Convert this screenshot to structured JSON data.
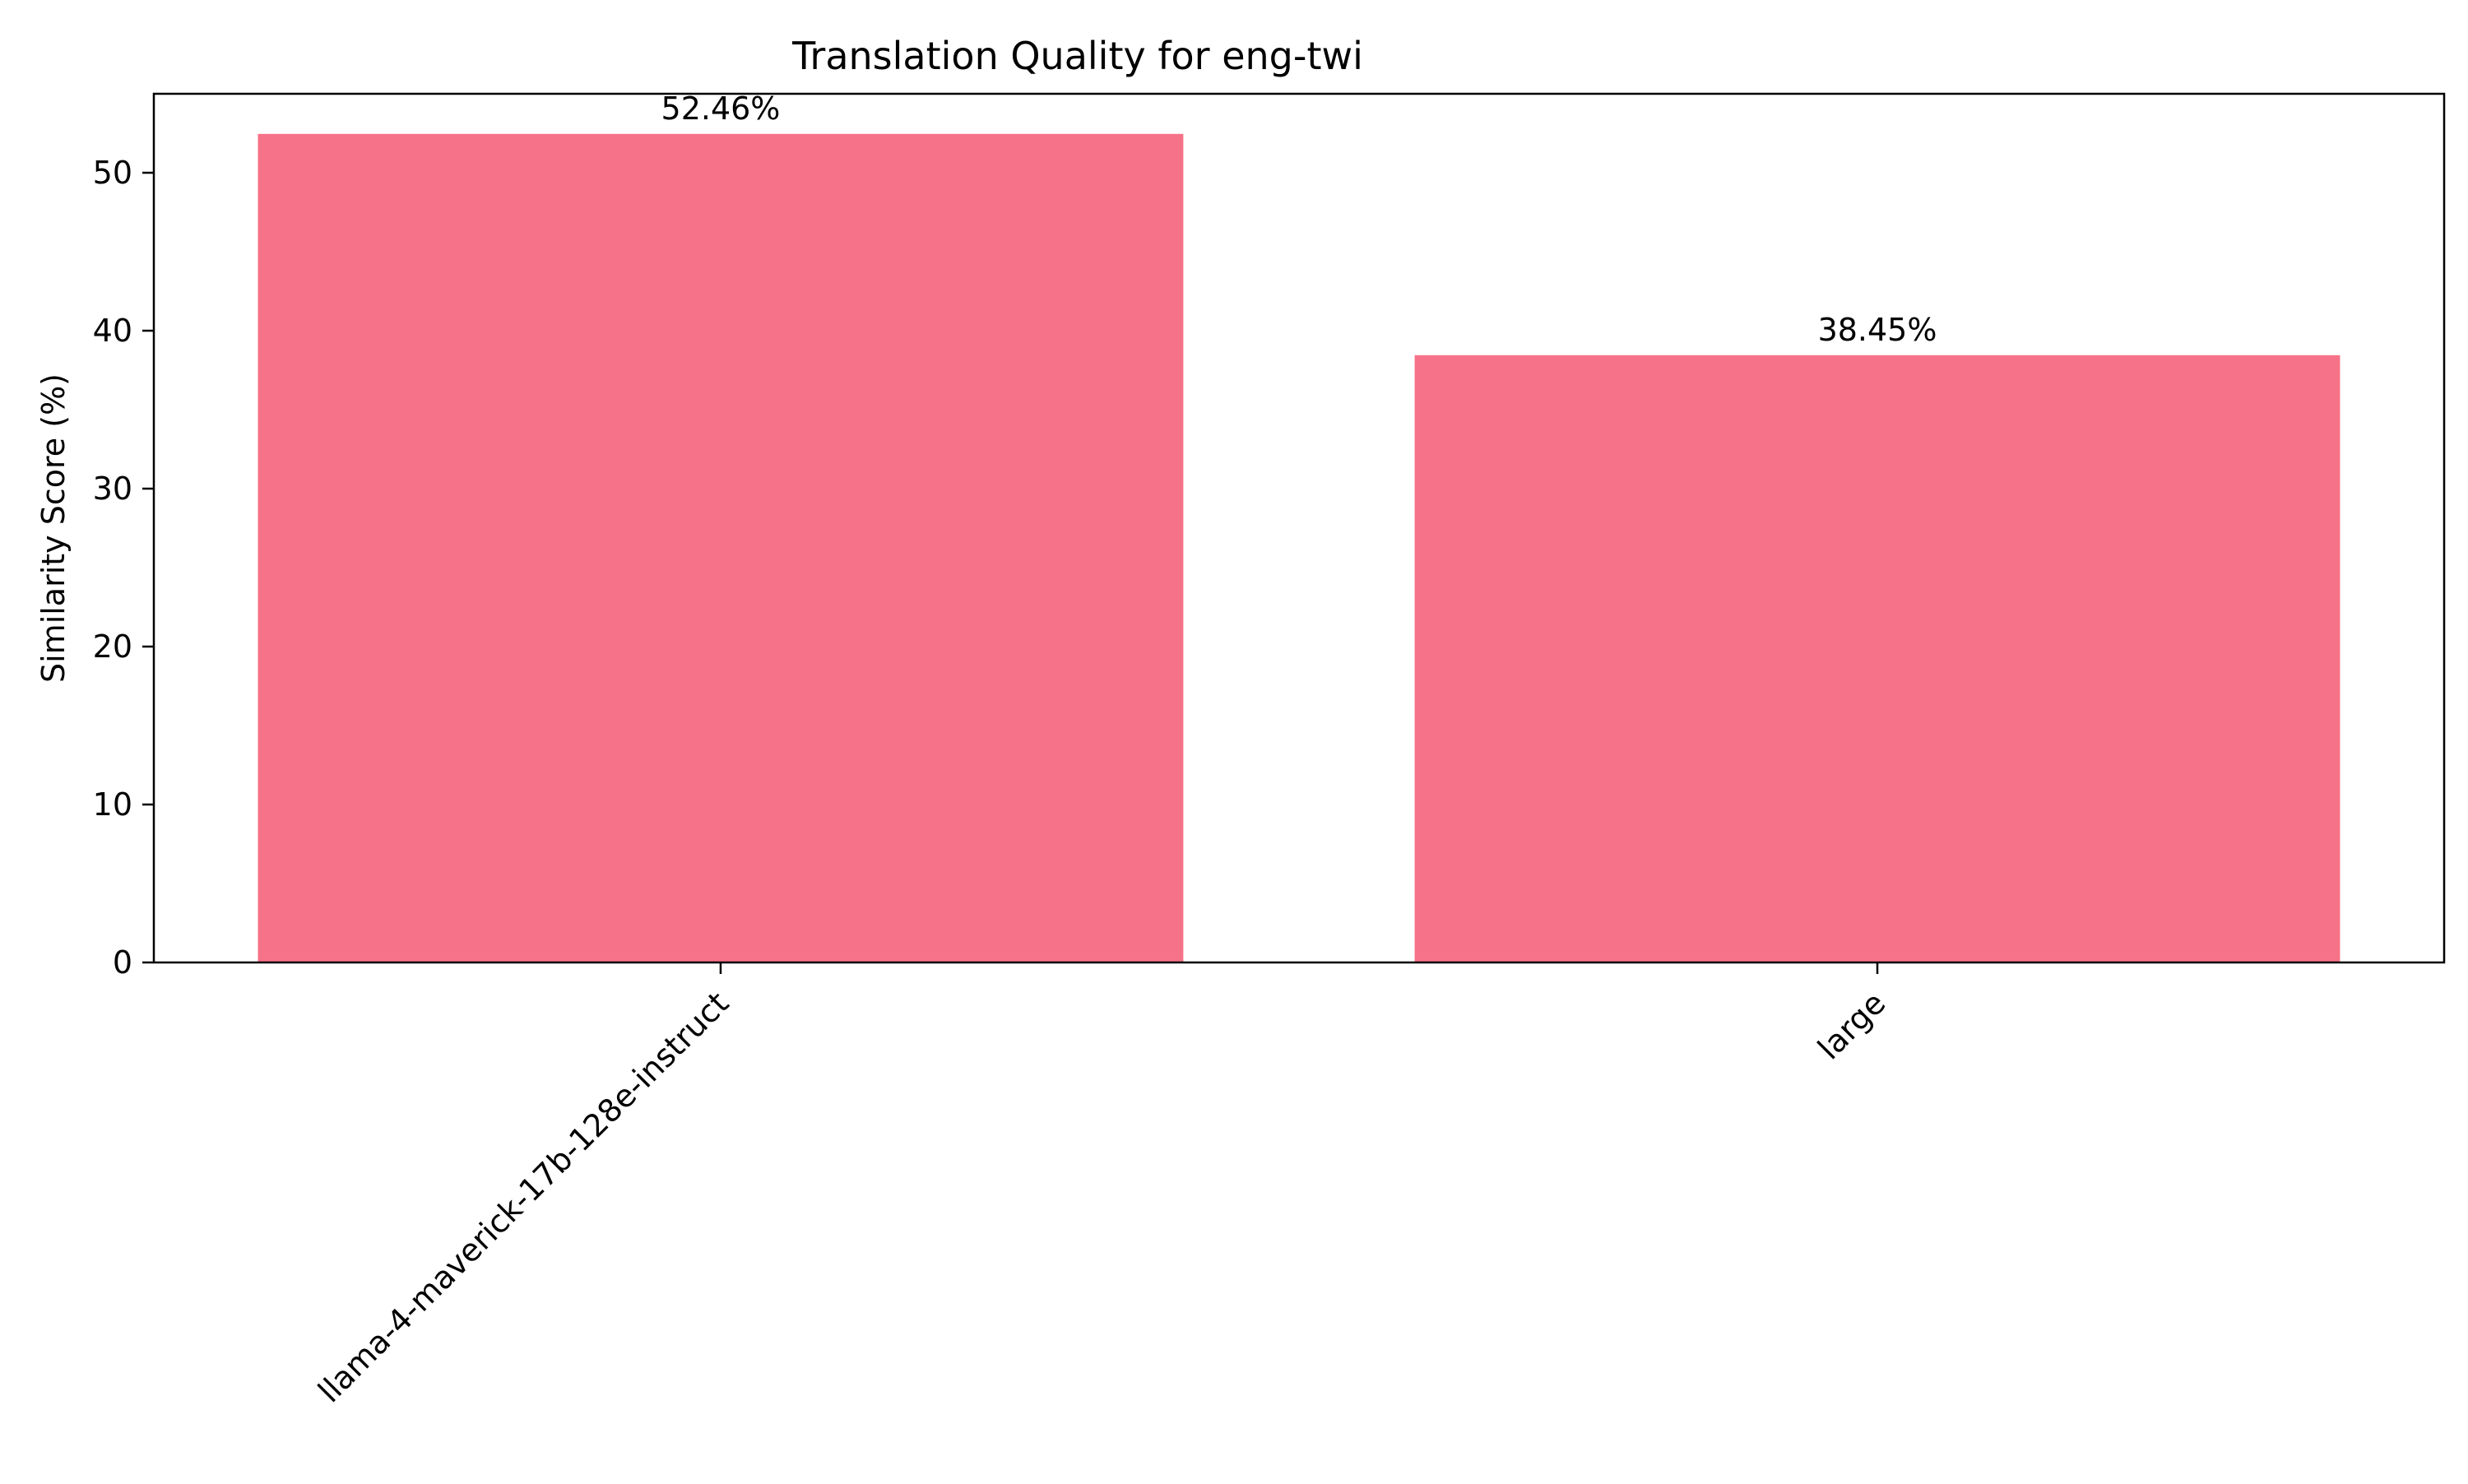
{
  "chart_data": {
    "type": "bar",
    "title": "Translation Quality for eng-twi",
    "xlabel": "",
    "ylabel": "Similarity Score (%)",
    "categories": [
      "llama-4-maverick-17b-128e-instruct",
      "large"
    ],
    "values": [
      52.46,
      38.45
    ],
    "value_labels": [
      "52.46%",
      "38.45%"
    ],
    "ylim": [
      0,
      55
    ],
    "yticks": [
      0,
      10,
      20,
      30,
      40,
      50
    ],
    "ytick_labels": [
      "0",
      "10",
      "20",
      "30",
      "40",
      "50"
    ],
    "bar_color": "#f67288",
    "grid": false,
    "legend": "none"
  }
}
